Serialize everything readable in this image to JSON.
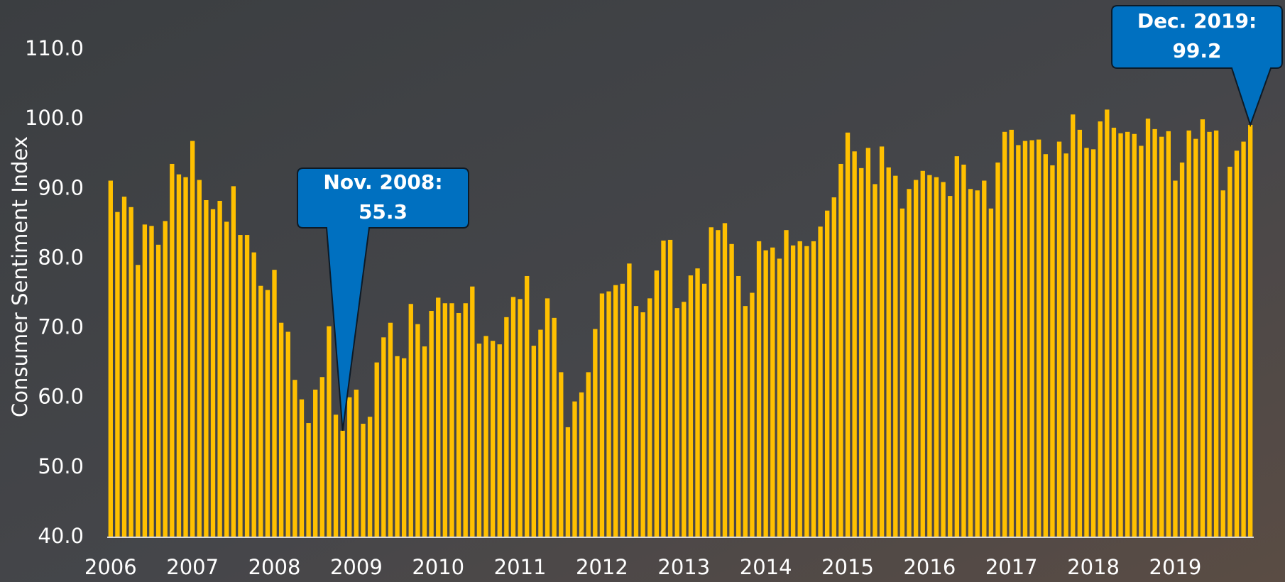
{
  "chart_data": {
    "type": "bar",
    "y_label": "Consumer Sentiment Index",
    "color": "#ffc000",
    "ylim": [
      40,
      110
    ],
    "yticks": [
      {
        "value": 40,
        "label": "40.0"
      },
      {
        "value": 50,
        "label": "50.0"
      },
      {
        "value": 60,
        "label": "60.0"
      },
      {
        "value": 70,
        "label": "70.0"
      },
      {
        "value": 80,
        "label": "80.0"
      },
      {
        "value": 90,
        "label": "90.0"
      },
      {
        "value": 100,
        "label": "100.0"
      },
      {
        "value": 110,
        "label": "110.0"
      }
    ],
    "categories": [
      "2006",
      null,
      null,
      null,
      null,
      null,
      null,
      null,
      null,
      null,
      null,
      null,
      "2007",
      null,
      null,
      null,
      null,
      null,
      null,
      null,
      null,
      null,
      null,
      null,
      "2008",
      null,
      null,
      null,
      null,
      null,
      null,
      null,
      null,
      null,
      null,
      null,
      "2009",
      null,
      null,
      null,
      null,
      null,
      null,
      null,
      null,
      null,
      null,
      null,
      "2010",
      null,
      null,
      null,
      null,
      null,
      null,
      null,
      null,
      null,
      null,
      null,
      "2011",
      null,
      null,
      null,
      null,
      null,
      null,
      null,
      null,
      null,
      null,
      null,
      "2012",
      null,
      null,
      null,
      null,
      null,
      null,
      null,
      null,
      null,
      null,
      null,
      "2013",
      null,
      null,
      null,
      null,
      null,
      null,
      null,
      null,
      null,
      null,
      null,
      "2014",
      null,
      null,
      null,
      null,
      null,
      null,
      null,
      null,
      null,
      null,
      null,
      "2015",
      null,
      null,
      null,
      null,
      null,
      null,
      null,
      null,
      null,
      null,
      null,
      "2016",
      null,
      null,
      null,
      null,
      null,
      null,
      null,
      null,
      null,
      null,
      null,
      "2017",
      null,
      null,
      null,
      null,
      null,
      null,
      null,
      null,
      null,
      null,
      null,
      "2018",
      null,
      null,
      null,
      null,
      null,
      null,
      null,
      null,
      null,
      null,
      null,
      "2019",
      null,
      null,
      null,
      null,
      null,
      null,
      null,
      null,
      null,
      null,
      null
    ],
    "values": [
      91.2,
      86.7,
      88.9,
      87.4,
      79.1,
      84.9,
      84.7,
      82.0,
      85.4,
      93.6,
      92.1,
      91.7,
      96.9,
      91.3,
      88.4,
      87.1,
      88.3,
      85.3,
      90.4,
      83.4,
      83.4,
      80.9,
      76.1,
      75.5,
      78.4,
      70.8,
      69.5,
      62.6,
      59.8,
      56.4,
      61.2,
      63.0,
      70.3,
      57.6,
      55.3,
      60.1,
      61.2,
      56.3,
      57.3,
      65.1,
      68.7,
      70.8,
      66.0,
      65.7,
      73.5,
      70.6,
      67.4,
      72.5,
      74.4,
      73.6,
      73.6,
      72.2,
      73.6,
      76.0,
      67.8,
      68.9,
      68.2,
      67.7,
      71.6,
      74.5,
      74.2,
      77.5,
      67.5,
      69.8,
      74.3,
      71.5,
      63.7,
      55.8,
      59.5,
      60.8,
      63.7,
      69.9,
      75.0,
      75.3,
      76.2,
      76.4,
      79.3,
      73.2,
      72.3,
      74.3,
      78.3,
      82.6,
      82.7,
      72.9,
      73.8,
      77.6,
      78.6,
      76.4,
      84.5,
      84.1,
      85.1,
      82.1,
      77.5,
      73.2,
      75.1,
      82.5,
      81.2,
      81.6,
      80.0,
      84.1,
      81.9,
      82.5,
      81.8,
      82.5,
      84.6,
      86.9,
      88.8,
      93.6,
      98.1,
      95.4,
      93.0,
      95.9,
      90.7,
      96.1,
      93.1,
      91.9,
      87.2,
      90.0,
      91.3,
      92.6,
      92.0,
      91.7,
      91.0,
      89.0,
      94.7,
      93.5,
      90.0,
      89.8,
      91.2,
      87.2,
      93.8,
      98.2,
      98.5,
      96.3,
      96.9,
      97.0,
      97.1,
      95.0,
      93.4,
      96.8,
      95.1,
      100.7,
      98.5,
      95.9,
      95.7,
      99.7,
      101.4,
      98.8,
      98.0,
      98.2,
      97.9,
      96.2,
      100.1,
      98.6,
      97.5,
      98.3,
      91.2,
      93.8,
      98.4,
      97.2,
      100.0,
      98.2,
      98.4,
      89.8,
      93.2,
      95.5,
      96.8,
      99.2
    ],
    "annotations": [
      {
        "lines": [
          "Nov. 2008:",
          "55.3"
        ],
        "color": "#0070c0"
      },
      {
        "lines": [
          "Dec. 2019:",
          "99.2"
        ],
        "color": "#0070c0"
      }
    ]
  }
}
